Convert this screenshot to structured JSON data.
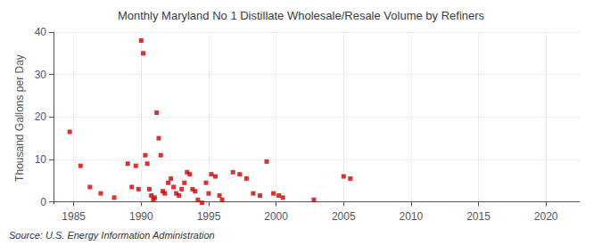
{
  "chart_data": {
    "type": "scatter",
    "title": "Monthly Maryland No 1 Distillate Wholesale/Resale Volume by Refiners",
    "ylabel": "Thousand Gallons per Day",
    "source": "Source: U.S. Energy Information Administration",
    "color": "#cc0000",
    "marker": "square",
    "grid": true,
    "xlim": [
      1983.5,
      2022.5
    ],
    "ylim": [
      -0.5,
      40
    ],
    "xticks": [
      1985,
      1990,
      1995,
      2000,
      2005,
      2010,
      2015,
      2020
    ],
    "yticks": [
      0,
      10,
      20,
      30,
      40
    ],
    "x": [
      1984.7,
      1985.5,
      1986.2,
      1987.0,
      1988.0,
      1989.0,
      1989.3,
      1989.6,
      1989.8,
      1990.0,
      1990.15,
      1990.3,
      1990.45,
      1990.6,
      1990.75,
      1990.9,
      1991.0,
      1991.15,
      1991.3,
      1991.45,
      1991.6,
      1991.75,
      1992.0,
      1992.2,
      1992.4,
      1992.6,
      1992.8,
      1993.0,
      1993.2,
      1993.4,
      1993.6,
      1993.8,
      1994.0,
      1994.2,
      1994.5,
      1994.8,
      1995.0,
      1995.2,
      1995.5,
      1995.8,
      1996.0,
      1996.8,
      1997.3,
      1997.8,
      1998.3,
      1998.8,
      1999.3,
      1999.8,
      2000.2,
      2000.5,
      2002.8,
      2005.0,
      2005.5
    ],
    "values": [
      16.5,
      8.5,
      3.5,
      2.0,
      1.0,
      9.0,
      3.5,
      8.5,
      3.0,
      38.0,
      35.0,
      11.0,
      9.0,
      3.0,
      1.5,
      0.5,
      1.0,
      21.0,
      15.0,
      11.0,
      2.5,
      2.0,
      4.5,
      5.5,
      3.5,
      2.0,
      1.5,
      3.0,
      4.5,
      7.0,
      6.5,
      3.0,
      2.5,
      0.5,
      -0.2,
      4.5,
      2.0,
      6.5,
      6.0,
      1.5,
      0.5,
      7.0,
      6.5,
      5.5,
      2.0,
      1.5,
      9.5,
      2.0,
      1.5,
      1.0,
      0.5,
      6.0,
      5.5
    ]
  }
}
